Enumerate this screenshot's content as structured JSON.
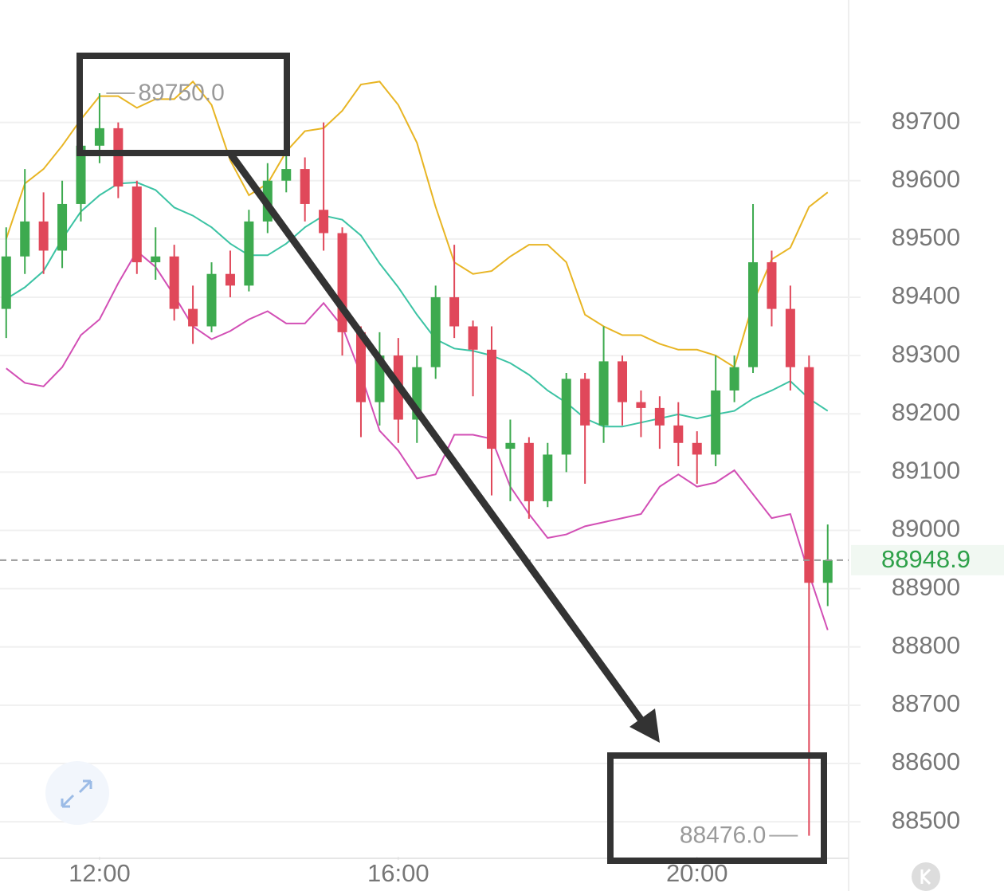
{
  "chart_data": {
    "type": "candlestick",
    "x": [
      10.75,
      11.0,
      11.25,
      11.5,
      11.75,
      12.0,
      12.25,
      12.5,
      12.75,
      13.0,
      13.25,
      13.5,
      13.75,
      14.0,
      14.25,
      14.5,
      14.75,
      15.0,
      15.25,
      15.5,
      15.75,
      16.0,
      16.25,
      16.5,
      16.75,
      17.0,
      17.25,
      17.5,
      17.75,
      18.0,
      18.25,
      18.5,
      18.75,
      19.0,
      19.25,
      19.5,
      19.75,
      20.0,
      20.25,
      20.5,
      20.75,
      21.0,
      21.25,
      21.5,
      21.75
    ],
    "open": [
      89380,
      89470,
      89530,
      89480,
      89560,
      89660,
      89690,
      89590,
      89460,
      89470,
      89380,
      89350,
      89440,
      89420,
      89530,
      89600,
      89620,
      89550,
      89510,
      89340,
      89220,
      89300,
      89190,
      89280,
      89400,
      89350,
      89310,
      89140,
      89150,
      89050,
      89130,
      89260,
      89180,
      89290,
      89220,
      89210,
      89180,
      89150,
      89130,
      89240,
      89280,
      89460,
      89380,
      89280,
      88910
    ],
    "high": [
      89520,
      89620,
      89580,
      89600,
      89690,
      89750,
      89700,
      89600,
      89520,
      89490,
      89420,
      89460,
      89480,
      89550,
      89630,
      89650,
      89640,
      89700,
      89520,
      89350,
      89340,
      89330,
      89300,
      89420,
      89490,
      89360,
      89350,
      89190,
      89160,
      89150,
      89270,
      89270,
      89350,
      89300,
      89240,
      89230,
      89220,
      89170,
      89300,
      89300,
      89560,
      89480,
      89420,
      89300,
      89010
    ],
    "low": [
      89330,
      89440,
      89440,
      89450,
      89530,
      89630,
      89570,
      89440,
      89430,
      89360,
      89320,
      89340,
      89400,
      89410,
      89510,
      89580,
      89530,
      89480,
      89300,
      89160,
      89180,
      89150,
      89150,
      89260,
      89330,
      89230,
      89060,
      89050,
      89020,
      89040,
      89100,
      89080,
      89150,
      89180,
      89160,
      89140,
      89110,
      89080,
      89110,
      89220,
      89270,
      89350,
      89240,
      88476,
      88870
    ],
    "close": [
      89470,
      89530,
      89480,
      89560,
      89660,
      89690,
      89590,
      89460,
      89470,
      89380,
      89350,
      89440,
      89420,
      89530,
      89600,
      89620,
      89560,
      89510,
      89340,
      89220,
      89300,
      89190,
      89280,
      89400,
      89350,
      89310,
      89140,
      89150,
      89050,
      89130,
      89260,
      89180,
      89290,
      89220,
      89210,
      89180,
      89150,
      89130,
      89240,
      89280,
      89460,
      89380,
      89280,
      88910,
      88949
    ],
    "up_color": "#3daa4f",
    "down_color": "#e0485a",
    "overlays": [
      {
        "color": "#e8b524",
        "values": [
          89500,
          89595,
          89620,
          89660,
          89705,
          89745,
          89745,
          89725,
          89740,
          89740,
          89770,
          89730,
          89635,
          89575,
          89595,
          89650,
          89685,
          89690,
          89720,
          89765,
          89770,
          89730,
          89665,
          89555,
          89460,
          89440,
          89445,
          89470,
          89490,
          89490,
          89460,
          89370,
          89350,
          89335,
          89335,
          89320,
          89310,
          89310,
          89300,
          89280,
          89390,
          89465,
          89485,
          89555,
          89580
        ]
      },
      {
        "color": "#3cc3a4",
        "values": [
          89397,
          89417,
          89445,
          89500,
          89547,
          89575,
          89595,
          89597,
          89584,
          89554,
          89540,
          89520,
          89492,
          89472,
          89472,
          89492,
          89520,
          89540,
          89533,
          89506,
          89458,
          89417,
          89370,
          89328,
          89312,
          89308,
          89300,
          89287,
          89267,
          89240,
          89219,
          89192,
          89178,
          89178,
          89185,
          89192,
          89199,
          89192,
          89199,
          89205,
          89226,
          89240,
          89256,
          89226,
          89205
        ]
      },
      {
        "color": "#d24fb5",
        "values": [
          89278,
          89253,
          89247,
          89280,
          89335,
          89362,
          89424,
          89479,
          89452,
          89403,
          89350,
          89328,
          89342,
          89362,
          89376,
          89355,
          89355,
          89390,
          89350,
          89267,
          89171,
          89137,
          89089,
          89096,
          89164,
          89164,
          89157,
          89075,
          89028,
          88987,
          88993,
          89007,
          89014,
          89021,
          89028,
          89075,
          89096,
          89075,
          89082,
          89103,
          89062,
          89021,
          89028,
          88925,
          88829
        ]
      }
    ],
    "xlim": [
      10.667,
      22.03
    ],
    "xticks": [
      {
        "value": 12,
        "label": "12:00"
      },
      {
        "value": 16,
        "label": "16:00"
      },
      {
        "value": 20,
        "label": "20:00"
      }
    ],
    "ylim": [
      88440,
      89910
    ],
    "yticks": [
      89700,
      89600,
      89500,
      89400,
      89300,
      89200,
      89100,
      89000,
      88900,
      88800,
      88700,
      88600,
      88500
    ],
    "grid": true,
    "last_price": 88948.9,
    "last_price_color": "#2fa14a",
    "max_label": {
      "x": 12.09,
      "value": 89750,
      "label": "89750.0"
    },
    "min_label": {
      "x": 21.35,
      "value": 88476,
      "label": "88476.0"
    }
  }
}
